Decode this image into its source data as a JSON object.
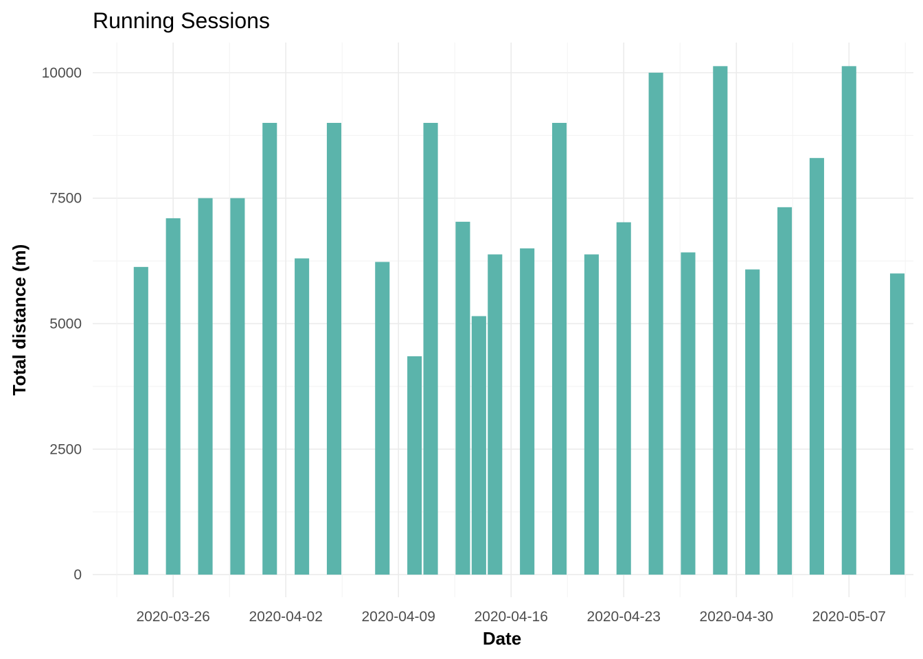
{
  "chart_data": {
    "type": "bar",
    "title": "Running Sessions",
    "xlabel": "Date",
    "ylabel": "Total distance (m)",
    "x_axis": {
      "type": "date",
      "range": [
        "2020-03-21",
        "2020-05-11"
      ],
      "ticks": [
        "2020-03-26",
        "2020-04-02",
        "2020-04-09",
        "2020-04-16",
        "2020-04-23",
        "2020-04-30",
        "2020-05-07"
      ]
    },
    "ylim": [
      -450,
      10600
    ],
    "y_ticks": [
      0,
      2500,
      5000,
      7500,
      10000
    ],
    "y_tick_labels": [
      "0",
      "2500",
      "5000",
      "7500",
      "10000"
    ],
    "grid": true,
    "bar_color": "#5bb4ab",
    "x": [
      "2020-03-24",
      "2020-03-26",
      "2020-03-28",
      "2020-03-30",
      "2020-04-01",
      "2020-04-03",
      "2020-04-05",
      "2020-04-08",
      "2020-04-10",
      "2020-04-11",
      "2020-04-13",
      "2020-04-14",
      "2020-04-15",
      "2020-04-17",
      "2020-04-19",
      "2020-04-21",
      "2020-04-23",
      "2020-04-25",
      "2020-04-27",
      "2020-04-29",
      "2020-05-01",
      "2020-05-03",
      "2020-05-05",
      "2020-05-07",
      "2020-05-10"
    ],
    "values": [
      6130,
      7100,
      7500,
      7500,
      9000,
      6300,
      9000,
      6230,
      4350,
      9000,
      7030,
      5150,
      6380,
      6500,
      9000,
      6380,
      7020,
      10000,
      6420,
      10130,
      6080,
      7320,
      8300,
      10130,
      6000
    ]
  }
}
